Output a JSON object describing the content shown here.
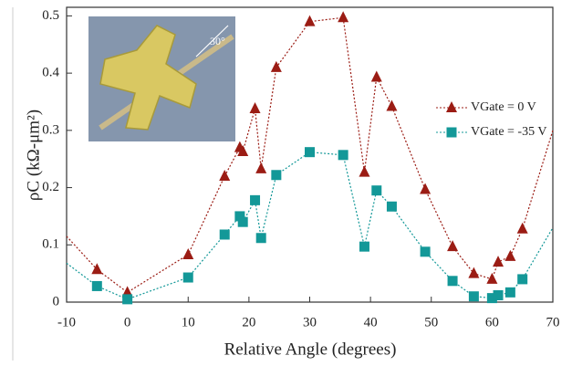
{
  "chart_data": {
    "type": "line",
    "xlabel": "Relative Angle (degrees)",
    "ylabel": "ρC (kΩ-μm²)",
    "annotation": "30°",
    "xlim": [
      -10,
      70
    ],
    "xticks": [
      -10,
      0,
      10,
      20,
      30,
      40,
      50,
      60,
      70
    ],
    "ylim": [
      0,
      0.515
    ],
    "yticks": [
      0,
      0.1,
      0.2,
      0.3,
      0.4,
      0.5
    ],
    "legend": "right",
    "series": [
      {
        "name": "VGate = 0 V",
        "color": "#9b1c14",
        "marker": "triangle",
        "x": [
          -10,
          -5,
          0,
          10,
          16,
          18.5,
          19,
          21,
          22,
          24.5,
          30,
          35.5,
          39,
          41,
          43.5,
          49,
          53.5,
          57,
          60,
          61,
          63,
          65,
          70
        ],
        "values": [
          0.115,
          0.057,
          0.017,
          0.083,
          0.22,
          0.27,
          0.263,
          0.338,
          0.233,
          0.41,
          0.49,
          0.497,
          0.227,
          0.393,
          0.342,
          0.197,
          0.097,
          0.05,
          0.04,
          0.07,
          0.08,
          0.128,
          0.3
        ]
      },
      {
        "name": "VGate = -35 V",
        "color": "#139898",
        "marker": "square",
        "x": [
          -10,
          -5,
          0,
          10,
          16,
          18.5,
          19,
          21,
          22,
          24.5,
          30,
          35.5,
          39,
          41,
          43.5,
          49,
          53.5,
          57,
          60,
          61,
          63,
          65,
          70
        ],
        "values": [
          0.068,
          0.028,
          0.005,
          0.043,
          0.118,
          0.15,
          0.14,
          0.178,
          0.112,
          0.222,
          0.262,
          0.257,
          0.097,
          0.195,
          0.167,
          0.088,
          0.037,
          0.01,
          0.007,
          0.012,
          0.017,
          0.04,
          0.13
        ]
      }
    ]
  }
}
